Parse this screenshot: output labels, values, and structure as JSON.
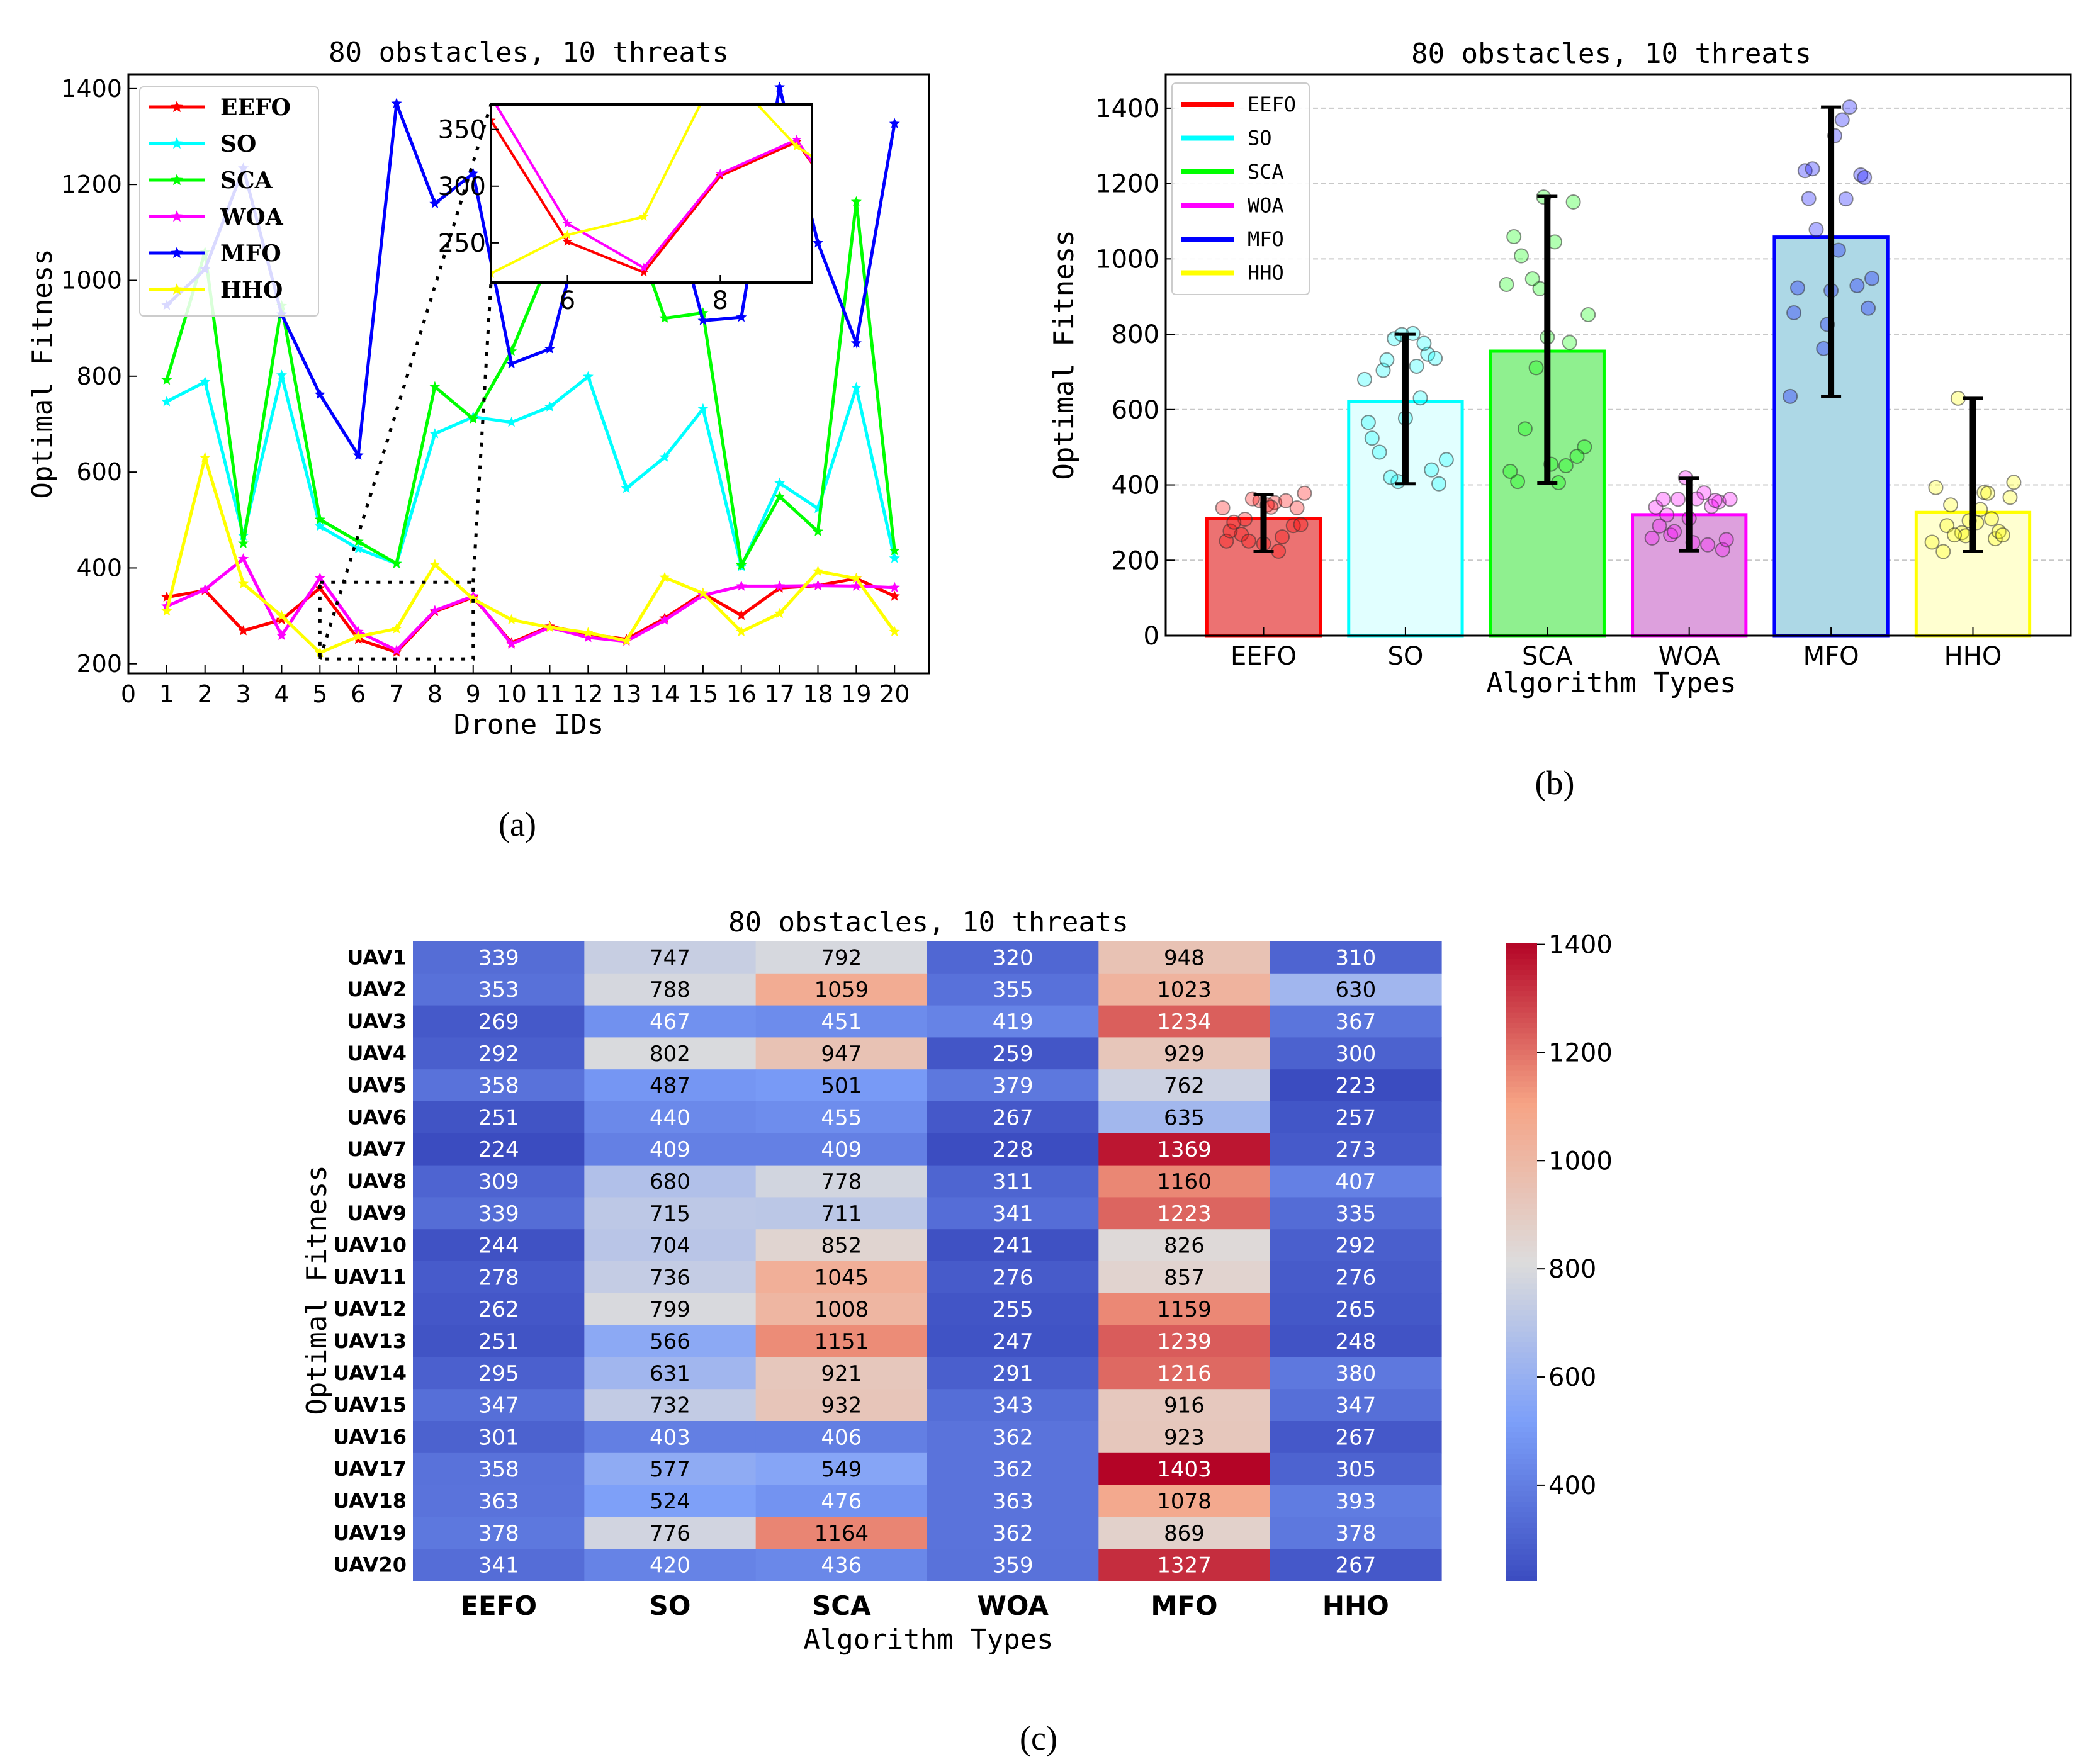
{
  "chart_data": [
    {
      "type": "line",
      "title": "80 obstacles, 10 threats",
      "xlabel": "Drone IDs",
      "ylabel": "Optimal Fitness",
      "xlim": [
        0,
        20.9
      ],
      "ylim": [
        180,
        1430
      ],
      "x": [
        1,
        2,
        3,
        4,
        5,
        6,
        7,
        8,
        9,
        10,
        11,
        12,
        13,
        14,
        15,
        16,
        17,
        18,
        19,
        20
      ],
      "xticks": [
        0,
        1,
        2,
        3,
        4,
        5,
        6,
        7,
        8,
        9,
        10,
        11,
        12,
        13,
        14,
        15,
        16,
        17,
        18,
        19,
        20
      ],
      "yticks": [
        200,
        400,
        600,
        800,
        1000,
        1200,
        1400
      ],
      "legend_position": "upper-left",
      "series": [
        {
          "name": "EEFO",
          "color": "#ff0000",
          "values": [
            339,
            353,
            269,
            292,
            358,
            251,
            224,
            309,
            339,
            244,
            278,
            262,
            251,
            295,
            347,
            301,
            358,
            363,
            378,
            341
          ]
        },
        {
          "name": "SO",
          "color": "#00ffff",
          "values": [
            747,
            788,
            467,
            802,
            487,
            440,
            409,
            680,
            715,
            704,
            736,
            799,
            566,
            631,
            732,
            403,
            577,
            524,
            776,
            420
          ]
        },
        {
          "name": "SCA",
          "color": "#00ff00",
          "values": [
            792,
            1059,
            451,
            947,
            501,
            455,
            409,
            778,
            711,
            852,
            1045,
            1008,
            1151,
            921,
            932,
            406,
            549,
            476,
            1164,
            436
          ]
        },
        {
          "name": "WOA",
          "color": "#ff00ff",
          "values": [
            320,
            355,
            419,
            259,
            379,
            267,
            228,
            311,
            341,
            241,
            276,
            255,
            247,
            291,
            343,
            362,
            362,
            363,
            362,
            359
          ]
        },
        {
          "name": "MFO",
          "color": "#0000ff",
          "values": [
            948,
            1023,
            1234,
            929,
            762,
            635,
            1369,
            1160,
            1223,
            826,
            857,
            1159,
            1239,
            1216,
            916,
            923,
            1403,
            1078,
            869,
            1327
          ]
        },
        {
          "name": "HHO",
          "color": "#ffff00",
          "values": [
            310,
            630,
            367,
            300,
            223,
            257,
            273,
            407,
            335,
            292,
            276,
            265,
            248,
            380,
            347,
            267,
            305,
            393,
            378,
            267
          ]
        }
      ],
      "inset": {
        "xlim": [
          5,
          9.2
        ],
        "ylim": [
          215,
          372
        ],
        "xticks": [
          6,
          8
        ],
        "yticks": [
          250,
          300,
          350
        ]
      },
      "zoom_box": {
        "xlim": [
          5,
          9
        ],
        "ylim": [
          210,
          370
        ]
      },
      "caption": "(a)"
    },
    {
      "type": "bar",
      "title": "80 obstacles, 10 threats",
      "xlabel": "Algorithm Types",
      "ylabel": "Optimal Fitness",
      "categories": [
        "EEFO",
        "SO",
        "SCA",
        "WOA",
        "MFO",
        "HHO"
      ],
      "values": [
        311,
        621,
        755,
        321,
        1058,
        327
      ],
      "error_bars": [
        [
          223,
          375
        ],
        [
          403,
          800
        ],
        [
          405,
          1166
        ],
        [
          225,
          418
        ],
        [
          635,
          1403
        ],
        [
          223,
          630
        ]
      ],
      "colors": [
        "#ff0000",
        "#00ffff",
        "#00ff00",
        "#ff00ff",
        "#0000ff",
        "#ffff00"
      ],
      "fill_colors": [
        "#ec7272",
        "#e1ffff",
        "#8ff08f",
        "#dda0dd",
        "#add8e6",
        "#ffffd0"
      ],
      "ylim": [
        0,
        1490
      ],
      "yticks": [
        0,
        200,
        400,
        600,
        800,
        1000,
        1200,
        1400
      ],
      "grid": "horizontal dashed",
      "legend_position": "upper-left",
      "legend": [
        "EEFO",
        "SO",
        "SCA",
        "WOA",
        "MFO",
        "HHO"
      ],
      "caption": "(b)"
    },
    {
      "type": "heatmap",
      "title": "80 obstacles, 10 threats",
      "xlabel": "Algorithm Types",
      "ylabel": "Optimal Fitness",
      "columns": [
        "EEFO",
        "SO",
        "SCA",
        "WOA",
        "MFO",
        "HHO"
      ],
      "rows": [
        "UAV1",
        "UAV2",
        "UAV3",
        "UAV4",
        "UAV5",
        "UAV6",
        "UAV7",
        "UAV8",
        "UAV9",
        "UAV10",
        "UAV11",
        "UAV12",
        "UAV13",
        "UAV14",
        "UAV15",
        "UAV16",
        "UAV17",
        "UAV18",
        "UAV19",
        "UAV20"
      ],
      "values": [
        [
          339,
          747,
          792,
          320,
          948,
          310
        ],
        [
          353,
          788,
          1059,
          355,
          1023,
          630
        ],
        [
          269,
          467,
          451,
          419,
          1234,
          367
        ],
        [
          292,
          802,
          947,
          259,
          929,
          300
        ],
        [
          358,
          487,
          501,
          379,
          762,
          223
        ],
        [
          251,
          440,
          455,
          267,
          635,
          257
        ],
        [
          224,
          409,
          409,
          228,
          1369,
          273
        ],
        [
          309,
          680,
          778,
          311,
          1160,
          407
        ],
        [
          339,
          715,
          711,
          341,
          1223,
          335
        ],
        [
          244,
          704,
          852,
          241,
          826,
          292
        ],
        [
          278,
          736,
          1045,
          276,
          857,
          276
        ],
        [
          262,
          799,
          1008,
          255,
          1159,
          265
        ],
        [
          251,
          566,
          1151,
          247,
          1239,
          248
        ],
        [
          295,
          631,
          921,
          291,
          1216,
          380
        ],
        [
          347,
          732,
          932,
          343,
          916,
          347
        ],
        [
          301,
          403,
          406,
          362,
          923,
          267
        ],
        [
          358,
          577,
          549,
          362,
          1403,
          305
        ],
        [
          363,
          524,
          476,
          363,
          1078,
          393
        ],
        [
          378,
          776,
          1164,
          362,
          869,
          378
        ],
        [
          341,
          420,
          436,
          359,
          1327,
          267
        ]
      ],
      "colormap": "coolwarm",
      "color_range": [
        223,
        1403
      ],
      "colorbar_ticks": [
        400,
        600,
        800,
        1000,
        1200,
        1400
      ],
      "caption": "(c)"
    }
  ]
}
